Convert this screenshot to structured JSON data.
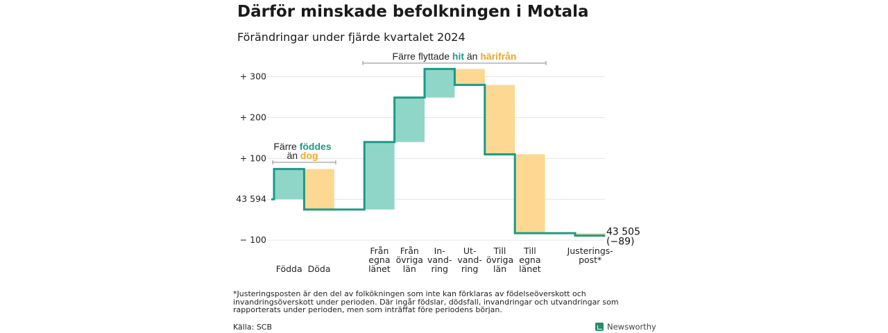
{
  "title": "Därför minskade befolkningen i Motala",
  "subtitle": "Förändringar under fjärde kvartalet 2024",
  "colors": {
    "increase": "#8fd6c9",
    "decrease": "#fcd893",
    "line": "#1a9a87",
    "teal_text": "#1a9a87",
    "orange_text": "#f0a625",
    "grid": "#e4e4e4"
  },
  "chart_data": {
    "type": "waterfall",
    "title": "Därför minskade befolkningen i Motala",
    "subtitle": "Förändringar under fjärde kvartalet 2024",
    "start": {
      "label": "43 594",
      "value": 0
    },
    "end": {
      "label": "43 505",
      "sublabel": "(−89)",
      "value": -89
    },
    "y_ticks": [
      {
        "value": -100,
        "label": "− 100"
      },
      {
        "value": 100,
        "label": "+ 100"
      },
      {
        "value": 200,
        "label": "+ 200"
      },
      {
        "value": 300,
        "label": "+ 300"
      }
    ],
    "ylim": [
      -110,
      335
    ],
    "grid": true,
    "steps": [
      {
        "category": [
          "Födda"
        ],
        "delta": 74
      },
      {
        "category": [
          "Döda"
        ],
        "delta": -99
      },
      {
        "category": [],
        "delta": 0
      },
      {
        "category": [
          "Från",
          "egna",
          "länet"
        ],
        "delta": 165
      },
      {
        "category": [
          "Från",
          "övriga",
          "län"
        ],
        "delta": 109
      },
      {
        "category": [
          "In-",
          "vand-",
          "ring"
        ],
        "delta": 70
      },
      {
        "category": [
          "Ut-",
          "vand-",
          "ring"
        ],
        "delta": -39
      },
      {
        "category": [
          "Till",
          "övriga",
          "län"
        ],
        "delta": -170
      },
      {
        "category": [
          "Till",
          "egna",
          "länet"
        ],
        "delta": -193
      },
      {
        "category": [],
        "delta": 0
      },
      {
        "category": [
          "Justerings-",
          "post*"
        ],
        "delta": -6
      }
    ],
    "annotations": [
      {
        "parts": [
          "Färre ",
          "föddes"
        ],
        "line2": [
          "än ",
          "dog"
        ]
      },
      {
        "parts": [
          "Färre flyttade ",
          "hit",
          " än ",
          "härifrån"
        ]
      }
    ]
  },
  "footnote": "*Justeringsposten är den del av folkökningen som inte kan förklaras av födelseöverskott och invandringsöverskott under perioden. Där ingår födslar, dödsfall, invandringar och utvandringar som rapporterats under perioden, men som inträffat före periodens början.",
  "source": "Källa: SCB",
  "logo_text": "Newsworthy"
}
